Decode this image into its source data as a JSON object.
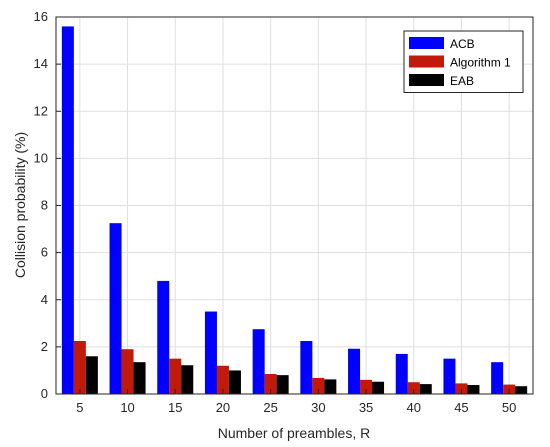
{
  "chart_data": {
    "type": "bar",
    "xlabel": "Number of preambles, R",
    "ylabel": "Collision probability (%)",
    "ylim": [
      0,
      16
    ],
    "yticks": [
      0,
      2,
      4,
      6,
      8,
      10,
      12,
      14,
      16
    ],
    "grid": true,
    "legend_position": "top-right",
    "categories": [
      "5",
      "10",
      "15",
      "20",
      "25",
      "30",
      "35",
      "40",
      "45",
      "50"
    ],
    "series": [
      {
        "name": "ACB",
        "color": "#0000ff",
        "values": [
          15.6,
          7.25,
          4.8,
          3.5,
          2.75,
          2.25,
          1.92,
          1.7,
          1.5,
          1.35
        ]
      },
      {
        "name": "Algorithm 1",
        "color": "#c1190a",
        "values": [
          2.25,
          1.9,
          1.5,
          1.2,
          0.85,
          0.68,
          0.6,
          0.5,
          0.45,
          0.4
        ]
      },
      {
        "name": "EAB",
        "color": "#000000",
        "values": [
          1.6,
          1.35,
          1.22,
          1.0,
          0.8,
          0.62,
          0.52,
          0.42,
          0.38,
          0.33
        ]
      }
    ]
  }
}
